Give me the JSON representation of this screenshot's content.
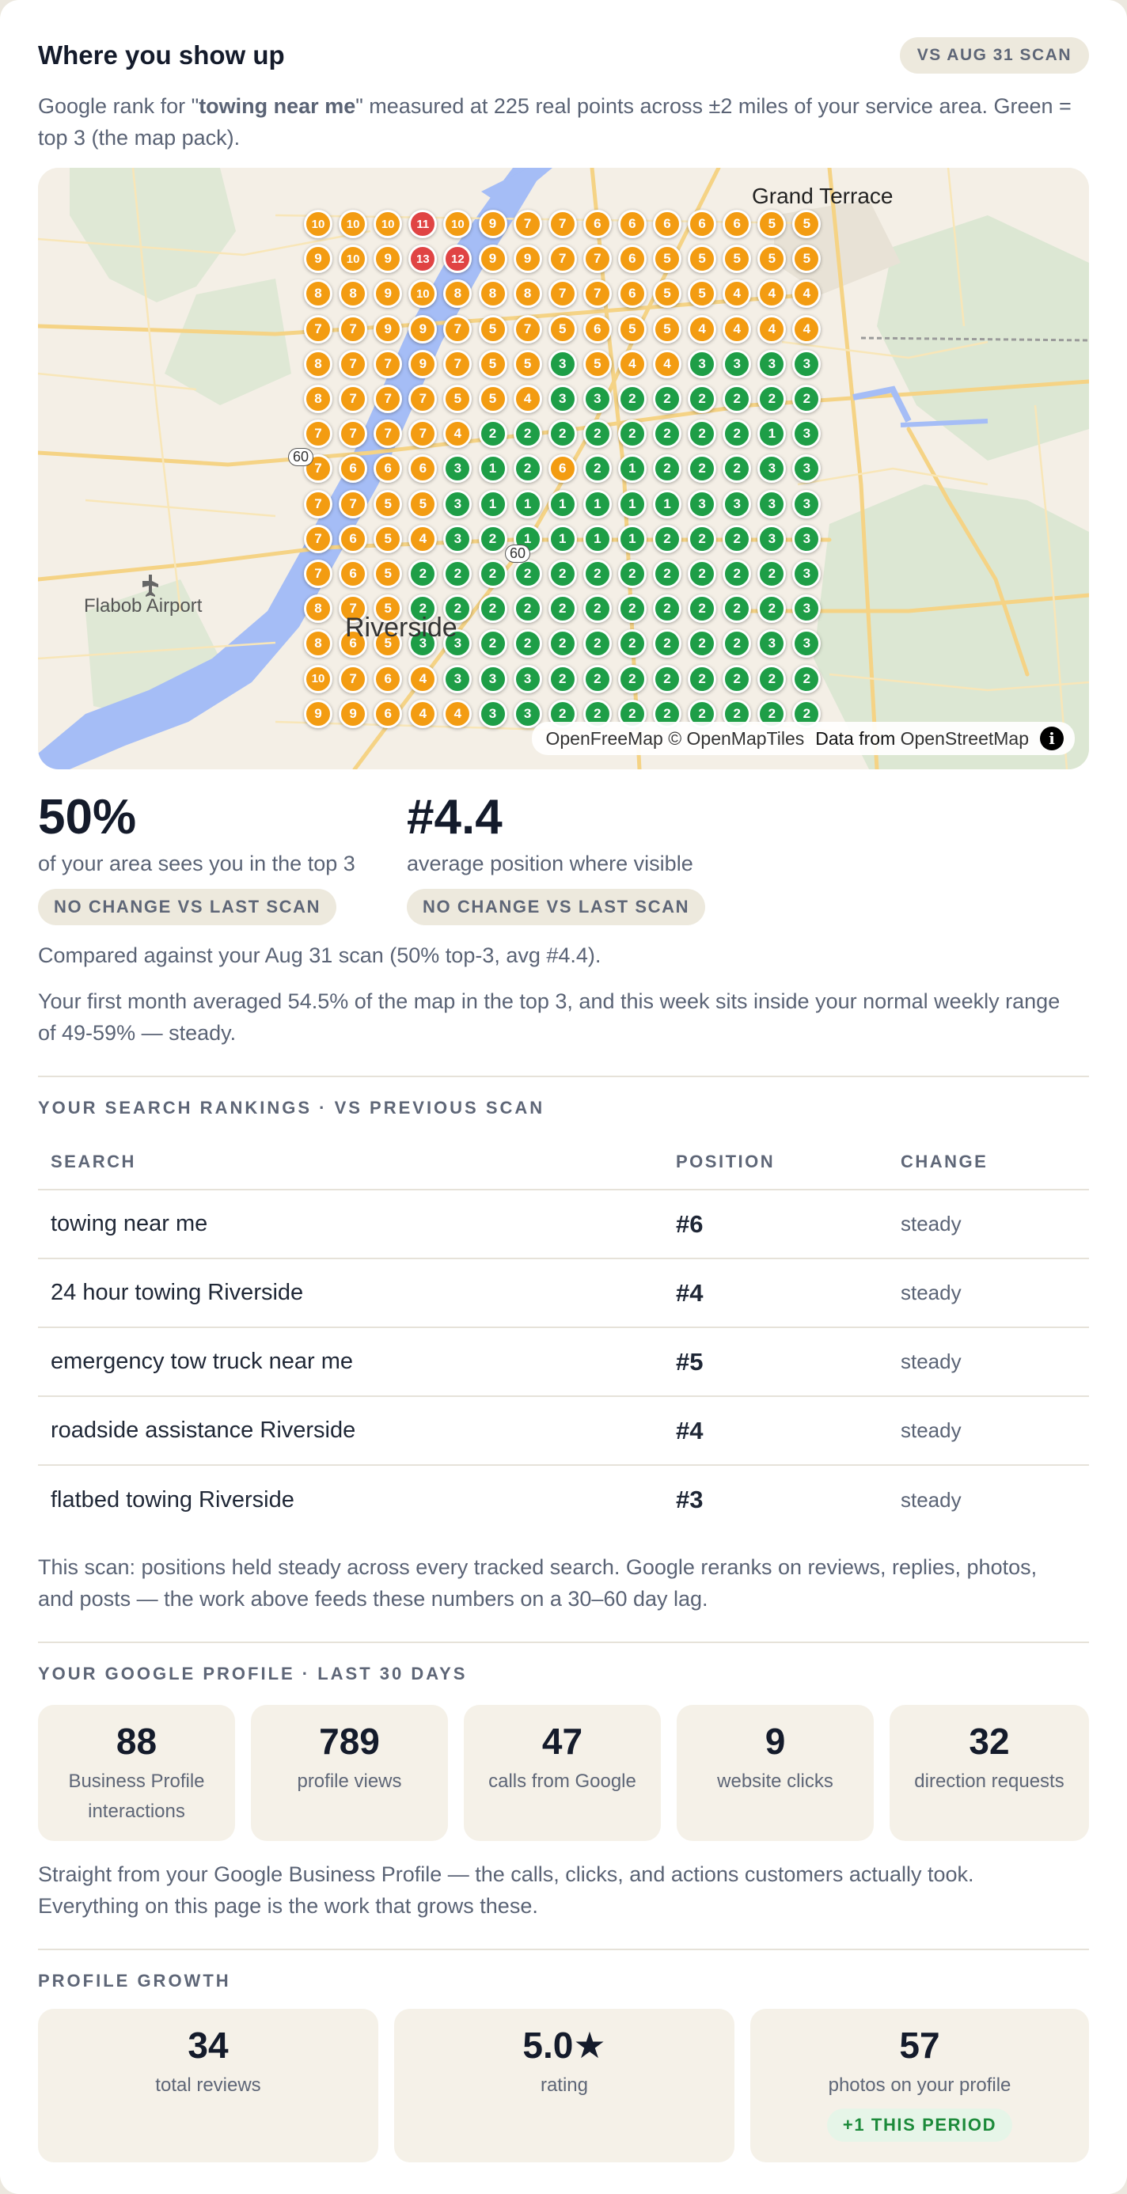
{
  "header": {
    "title": "Where you show up",
    "scan_pill": "VS AUG 31 SCAN",
    "desc_prefix": "Google rank for \"",
    "desc_query": "towing near me",
    "desc_suffix": "\" measured at 225 real points across ±2 miles of your service area. Green = top 3 (the map pack)."
  },
  "map": {
    "labels": {
      "grand_terrace": "Grand Terrace",
      "flabob": "Flabob Airport",
      "riverside": "Riverside",
      "route_60a": "60",
      "route_60b": "60"
    },
    "attribution": "OpenFreeMap © OpenMapTiles",
    "attribution_data": "Data from",
    "attribution_osm": "OpenStreetMap",
    "info_glyph": "i",
    "colors": {
      "top3": "#1e9e47",
      "mid": "#f39c12",
      "low": "#e04444"
    },
    "grid": [
      [
        10,
        10,
        10,
        11,
        10,
        9,
        7,
        7,
        6,
        6,
        6,
        6,
        6,
        5,
        5
      ],
      [
        9,
        10,
        9,
        13,
        12,
        9,
        9,
        7,
        7,
        6,
        5,
        5,
        5,
        5,
        5
      ],
      [
        8,
        8,
        9,
        10,
        8,
        8,
        8,
        7,
        7,
        6,
        5,
        5,
        4,
        4,
        4
      ],
      [
        7,
        7,
        9,
        9,
        7,
        5,
        7,
        5,
        6,
        5,
        5,
        4,
        4,
        4,
        4
      ],
      [
        8,
        7,
        7,
        9,
        7,
        5,
        5,
        3,
        5,
        4,
        4,
        3,
        3,
        3,
        3
      ],
      [
        8,
        7,
        7,
        7,
        5,
        5,
        4,
        3,
        3,
        2,
        2,
        2,
        2,
        2,
        2
      ],
      [
        7,
        7,
        7,
        7,
        4,
        2,
        2,
        2,
        2,
        2,
        2,
        2,
        2,
        1,
        3
      ],
      [
        7,
        6,
        6,
        6,
        3,
        1,
        2,
        6,
        2,
        1,
        2,
        2,
        2,
        3,
        3
      ],
      [
        7,
        7,
        5,
        5,
        3,
        1,
        1,
        1,
        1,
        1,
        1,
        3,
        3,
        3,
        3
      ],
      [
        7,
        6,
        5,
        4,
        3,
        2,
        1,
        1,
        1,
        1,
        2,
        2,
        2,
        3,
        3
      ],
      [
        7,
        6,
        5,
        2,
        2,
        2,
        2,
        2,
        2,
        2,
        2,
        2,
        2,
        2,
        3
      ],
      [
        8,
        7,
        5,
        2,
        2,
        2,
        2,
        2,
        2,
        2,
        2,
        2,
        2,
        2,
        3
      ],
      [
        8,
        6,
        5,
        3,
        3,
        2,
        2,
        2,
        2,
        2,
        2,
        2,
        2,
        3,
        3
      ],
      [
        10,
        7,
        6,
        4,
        3,
        3,
        3,
        2,
        2,
        2,
        2,
        2,
        2,
        2,
        2
      ],
      [
        9,
        9,
        6,
        4,
        4,
        3,
        3,
        2,
        2,
        2,
        2,
        2,
        2,
        2,
        2
      ]
    ]
  },
  "stats": [
    {
      "value": "50%",
      "caption": "of your area sees you in the top 3",
      "tag": "NO CHANGE VS LAST SCAN"
    },
    {
      "value": "#4.4",
      "caption": "average position where visible",
      "tag": "NO CHANGE VS LAST SCAN"
    }
  ],
  "compare_text": "Compared against your Aug 31 scan (50% top-3, avg #4.4).",
  "month_text": "Your first month averaged 54.5% of the map in the top 3, and this week sits inside your normal weekly range of 49-59% — steady.",
  "rankings": {
    "heading": "YOUR SEARCH RANKINGS · VS PREVIOUS SCAN",
    "columns": [
      "SEARCH",
      "POSITION",
      "CHANGE"
    ],
    "rows": [
      {
        "search": "towing near me",
        "position": "#6",
        "change": "steady"
      },
      {
        "search": "24 hour towing Riverside",
        "position": "#4",
        "change": "steady"
      },
      {
        "search": "emergency tow truck near me",
        "position": "#5",
        "change": "steady"
      },
      {
        "search": "roadside assistance Riverside",
        "position": "#4",
        "change": "steady"
      },
      {
        "search": "flatbed towing Riverside",
        "position": "#3",
        "change": "steady"
      }
    ],
    "note": "This scan: positions held steady across every tracked search. Google reranks on reviews, replies, photos, and posts — the work above feeds these numbers on a 30–60 day lag."
  },
  "profile": {
    "heading": "YOUR GOOGLE PROFILE · LAST 30 DAYS",
    "tiles": [
      {
        "num": "88",
        "label": "Business Profile interactions"
      },
      {
        "num": "789",
        "label": "profile views"
      },
      {
        "num": "47",
        "label": "calls from Google"
      },
      {
        "num": "9",
        "label": "website clicks"
      },
      {
        "num": "32",
        "label": "direction requests"
      }
    ],
    "note": "Straight from your Google Business Profile — the calls, clicks, and actions customers actually took. Everything on this page is the work that grows these."
  },
  "growth": {
    "heading": "PROFILE GROWTH",
    "tiles": [
      {
        "num": "34",
        "label": "total reviews"
      },
      {
        "num": "5.0",
        "star": "★",
        "label": "rating"
      },
      {
        "num": "57",
        "label": "photos on your profile",
        "badge": "+1 THIS PERIOD"
      }
    ]
  }
}
